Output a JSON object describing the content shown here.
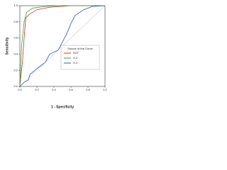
{
  "chart_data": {
    "type": "line",
    "xlabel": "1 - Specificity",
    "ylabel": "Sensitivity",
    "xlim": [
      0,
      1
    ],
    "ylim": [
      0,
      1
    ],
    "xticks": [
      {
        "value": 0,
        "label": "0.0"
      },
      {
        "value": 0.2,
        "label": "0.2"
      },
      {
        "value": 0.4,
        "label": "0.4"
      },
      {
        "value": 0.6,
        "label": "0.6"
      },
      {
        "value": 0.8,
        "label": "0.8"
      },
      {
        "value": 1,
        "label": "1.0"
      }
    ],
    "yticks": [
      {
        "value": 0,
        "label": "0.0"
      },
      {
        "value": 0.2,
        "label": "0.2"
      },
      {
        "value": 0.4,
        "label": "0.4"
      },
      {
        "value": 0.6,
        "label": "0.6"
      },
      {
        "value": 0.8,
        "label": "0.8"
      },
      {
        "value": 1,
        "label": "1.0"
      }
    ],
    "legend_title": "Source of the Curve",
    "series": [
      {
        "name": "SCF",
        "color": "#d9301e",
        "x": [
          0,
          0.03,
          0.05,
          0.07,
          0.12,
          0.2,
          0.35,
          0.6,
          1
        ],
        "values": [
          0,
          0.3,
          0.6,
          0.85,
          0.9,
          0.95,
          0.98,
          1,
          1
        ]
      },
      {
        "name": "X-2",
        "color": "#3aa63a",
        "x": [
          0,
          0.02,
          0.05,
          0.08,
          0.15,
          0.3,
          0.5,
          1
        ],
        "values": [
          0,
          0.5,
          0.8,
          0.92,
          0.97,
          0.99,
          1,
          1
        ]
      },
      {
        "name": "X-3",
        "color": "#3355bb",
        "x": [
          0,
          0.05,
          0.1,
          0.12,
          0.2,
          0.3,
          0.35,
          0.45,
          0.5,
          0.55,
          0.6,
          0.65,
          0.75,
          0.85,
          1
        ],
        "values": [
          0,
          0.05,
          0.08,
          0.15,
          0.22,
          0.3,
          0.4,
          0.45,
          0.55,
          0.65,
          0.78,
          0.88,
          0.95,
          0.99,
          1
        ]
      }
    ]
  }
}
